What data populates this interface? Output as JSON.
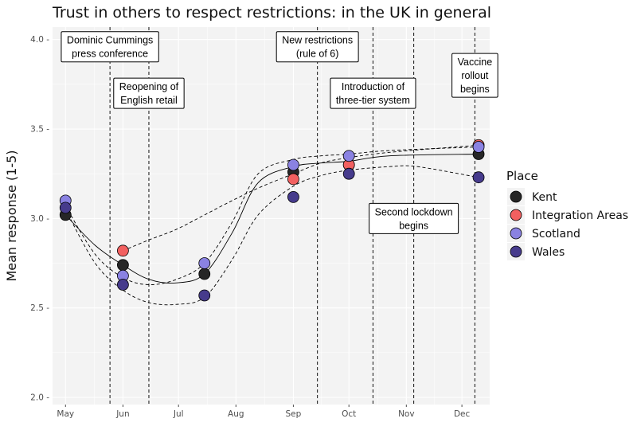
{
  "chart_data": {
    "type": "scatter",
    "title": "Trust in others to respect restrictions: in the UK in general",
    "ylabel": "Mean response (1-5)",
    "xlabel": "",
    "x_range": [
      "2020-04-24",
      "2020-12-16"
    ],
    "ylim": [
      1.96,
      4.07
    ],
    "y_ticks": [
      2.0,
      2.5,
      3.0,
      3.5,
      4.0
    ],
    "y_tick_labels": [
      "2.0 -",
      "2.5 -",
      "3.0 -",
      "3.5 -",
      "4.0 -"
    ],
    "x_ticks": [
      {
        "date": "2020-05-01",
        "label": "May"
      },
      {
        "date": "2020-06-01",
        "label": "Jun"
      },
      {
        "date": "2020-07-01",
        "label": "Jul"
      },
      {
        "date": "2020-08-01",
        "label": "Aug"
      },
      {
        "date": "2020-09-01",
        "label": "Sep"
      },
      {
        "date": "2020-10-01",
        "label": "Oct"
      },
      {
        "date": "2020-11-01",
        "label": "Nov"
      },
      {
        "date": "2020-12-01",
        "label": "Dec"
      }
    ],
    "grid": true,
    "legend": {
      "title": "Place",
      "position": "right"
    },
    "series": [
      {
        "name": "Kent",
        "color": "#262626",
        "line": "solid",
        "points": [
          {
            "x": "2020-05-01",
            "y": 3.02
          },
          {
            "x": "2020-06-01",
            "y": 2.74
          },
          {
            "x": "2020-07-15",
            "y": 2.69
          },
          {
            "x": "2020-09-01",
            "y": 3.26
          },
          {
            "x": "2020-10-01",
            "y": 3.3
          },
          {
            "x": "2020-12-10",
            "y": 3.36
          }
        ],
        "curve": [
          [
            0,
            3.02
          ],
          [
            16,
            2.85
          ],
          [
            31,
            2.74
          ],
          [
            45,
            2.66
          ],
          [
            60,
            2.64
          ],
          [
            75,
            2.69
          ],
          [
            90,
            2.92
          ],
          [
            104,
            3.2
          ],
          [
            123,
            3.29
          ],
          [
            138,
            3.31
          ],
          [
            153,
            3.32
          ],
          [
            175,
            3.35
          ],
          [
            223,
            3.36
          ]
        ]
      },
      {
        "name": "Integration Areas",
        "color": "#f26060",
        "line": "dashed",
        "points": [
          {
            "x": "2020-06-01",
            "y": 2.82
          },
          {
            "x": "2020-09-01",
            "y": 3.22
          },
          {
            "x": "2020-10-01",
            "y": 3.3
          },
          {
            "x": "2020-12-10",
            "y": 3.41
          }
        ],
        "curve": [
          [
            31,
            2.82
          ],
          [
            45,
            2.88
          ],
          [
            60,
            2.94
          ],
          [
            75,
            3.02
          ],
          [
            90,
            3.1
          ],
          [
            104,
            3.17
          ],
          [
            123,
            3.25
          ],
          [
            138,
            3.31
          ],
          [
            153,
            3.34
          ],
          [
            175,
            3.37
          ],
          [
            223,
            3.41
          ]
        ]
      },
      {
        "name": "Scotland",
        "color": "#8a82e2",
        "line": "dashed",
        "points": [
          {
            "x": "2020-05-01",
            "y": 3.1
          },
          {
            "x": "2020-06-01",
            "y": 2.68
          },
          {
            "x": "2020-07-15",
            "y": 2.75
          },
          {
            "x": "2020-09-01",
            "y": 3.3
          },
          {
            "x": "2020-10-01",
            "y": 3.35
          },
          {
            "x": "2020-12-10",
            "y": 3.4
          }
        ],
        "curve": [
          [
            0,
            3.07
          ],
          [
            16,
            2.8
          ],
          [
            31,
            2.67
          ],
          [
            45,
            2.63
          ],
          [
            60,
            2.66
          ],
          [
            75,
            2.75
          ],
          [
            90,
            2.98
          ],
          [
            104,
            3.25
          ],
          [
            123,
            3.33
          ],
          [
            138,
            3.35
          ],
          [
            153,
            3.36
          ],
          [
            175,
            3.38
          ],
          [
            223,
            3.4
          ]
        ]
      },
      {
        "name": "Wales",
        "color": "#463b8c",
        "line": "dashed",
        "points": [
          {
            "x": "2020-05-01",
            "y": 3.06
          },
          {
            "x": "2020-06-01",
            "y": 2.63
          },
          {
            "x": "2020-07-15",
            "y": 2.57
          },
          {
            "x": "2020-09-01",
            "y": 3.12
          },
          {
            "x": "2020-10-01",
            "y": 3.25
          },
          {
            "x": "2020-12-10",
            "y": 3.23
          }
        ],
        "curve": [
          [
            0,
            3.05
          ],
          [
            16,
            2.75
          ],
          [
            31,
            2.6
          ],
          [
            45,
            2.53
          ],
          [
            60,
            2.52
          ],
          [
            75,
            2.56
          ],
          [
            90,
            2.77
          ],
          [
            104,
            3.02
          ],
          [
            123,
            3.18
          ],
          [
            138,
            3.24
          ],
          [
            153,
            3.27
          ],
          [
            175,
            3.29
          ],
          [
            190,
            3.29
          ],
          [
            223,
            3.23
          ]
        ]
      }
    ],
    "events": [
      {
        "date": "2020-05-25",
        "label": [
          "Dominic Cummings",
          "press conference"
        ],
        "label_y": 3.96
      },
      {
        "date": "2020-06-15",
        "label": [
          "Reopening of",
          "English retail"
        ],
        "label_y": 3.7
      },
      {
        "date": "2020-09-14",
        "label": [
          "New restrictions",
          "(rule of 6)"
        ],
        "label_y": 3.96
      },
      {
        "date": "2020-10-14",
        "label": [
          "Introduction of",
          "three-tier system"
        ],
        "label_y": 3.7
      },
      {
        "date": "2020-11-05",
        "label": [
          "Second lockdown",
          "begins"
        ],
        "label_y": 3.0
      },
      {
        "date": "2020-12-08",
        "label": [
          "Vaccine",
          "rollout",
          "begins"
        ],
        "label_y": 3.8
      }
    ]
  }
}
